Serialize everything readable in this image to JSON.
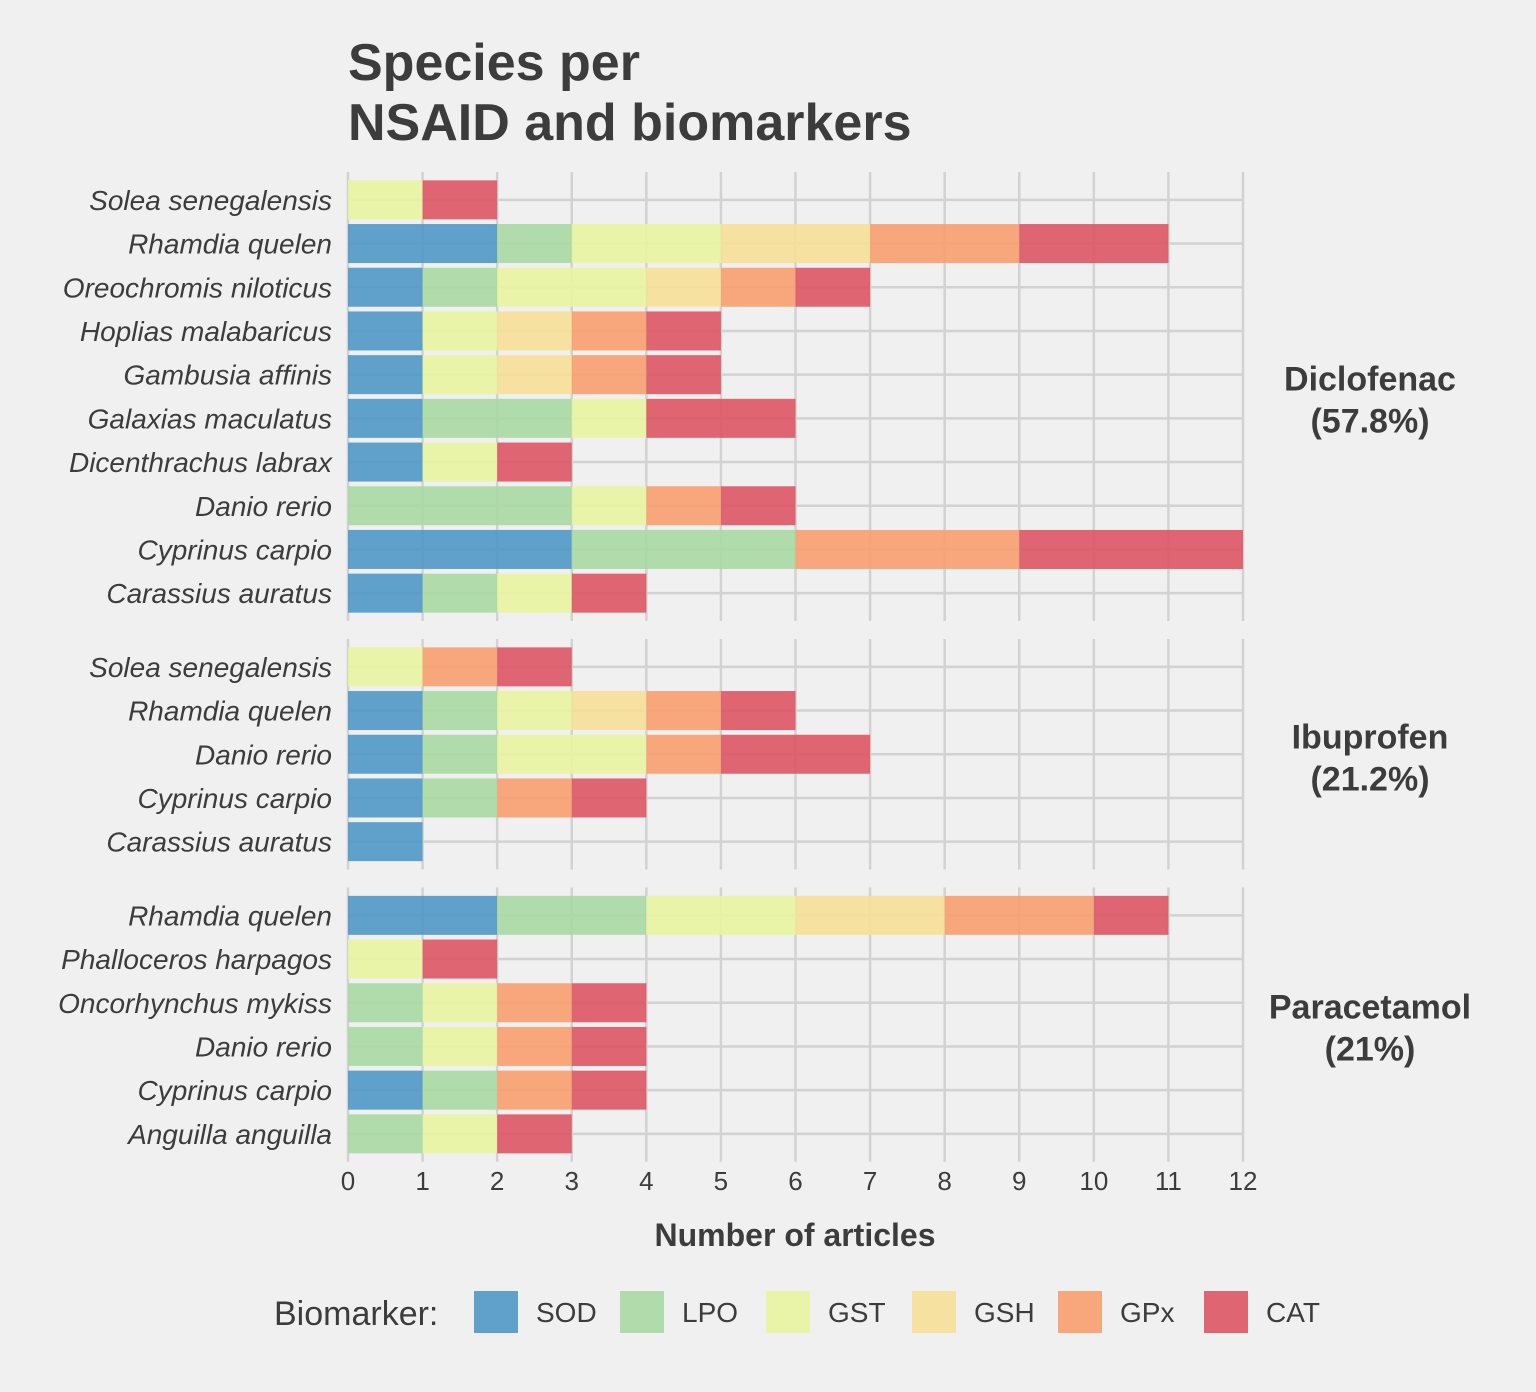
{
  "chart_data": {
    "type": "bar",
    "orientation": "horizontal",
    "stacked": true,
    "title": [
      "Species per",
      "NSAID and biomarkers"
    ],
    "xlabel": "Number of articles",
    "xlim": [
      0,
      12
    ],
    "xticks": [
      0,
      1,
      2,
      3,
      4,
      5,
      6,
      7,
      8,
      9,
      10,
      11,
      12
    ],
    "grid": true,
    "legend": {
      "title": "Biomarker:",
      "placement": "bottom",
      "items": [
        {
          "name": "SOD",
          "color": "#4f98c6"
        },
        {
          "name": "LPO",
          "color": "#a9d9a3"
        },
        {
          "name": "GST",
          "color": "#e8f4a0"
        },
        {
          "name": "GSH",
          "color": "#f7df98"
        },
        {
          "name": "GPx",
          "color": "#f89f70"
        },
        {
          "name": "CAT",
          "color": "#db5563"
        }
      ]
    },
    "facets": [
      {
        "name": "Diclofenac",
        "share": "(57.8%)",
        "rows": [
          {
            "species": "Solea senegalensis",
            "SOD": 0,
            "LPO": 0,
            "GST": 1,
            "GSH": 0,
            "GPx": 0,
            "CAT": 1
          },
          {
            "species": "Rhamdia quelen",
            "SOD": 2,
            "LPO": 1,
            "GST": 2,
            "GSH": 2,
            "GPx": 2,
            "CAT": 2
          },
          {
            "species": "Oreochromis niloticus",
            "SOD": 1,
            "LPO": 1,
            "GST": 2,
            "GSH": 1,
            "GPx": 1,
            "CAT": 1
          },
          {
            "species": "Hoplias malabaricus",
            "SOD": 1,
            "LPO": 0,
            "GST": 1,
            "GSH": 1,
            "GPx": 1,
            "CAT": 1
          },
          {
            "species": "Gambusia affinis",
            "SOD": 1,
            "LPO": 0,
            "GST": 1,
            "GSH": 1,
            "GPx": 1,
            "CAT": 1
          },
          {
            "species": "Galaxias maculatus",
            "SOD": 1,
            "LPO": 2,
            "GST": 1,
            "GSH": 0,
            "GPx": 0,
            "CAT": 2
          },
          {
            "species": "Dicenthrachus labrax",
            "SOD": 1,
            "LPO": 0,
            "GST": 1,
            "GSH": 0,
            "GPx": 0,
            "CAT": 1
          },
          {
            "species": "Danio rerio",
            "SOD": 0,
            "LPO": 3,
            "GST": 1,
            "GSH": 0,
            "GPx": 1,
            "CAT": 1
          },
          {
            "species": "Cyprinus carpio",
            "SOD": 3,
            "LPO": 3,
            "GST": 0,
            "GSH": 0,
            "GPx": 3,
            "CAT": 3
          },
          {
            "species": "Carassius auratus",
            "SOD": 1,
            "LPO": 1,
            "GST": 1,
            "GSH": 0,
            "GPx": 0,
            "CAT": 1
          }
        ]
      },
      {
        "name": "Ibuprofen",
        "share": "(21.2%)",
        "rows": [
          {
            "species": "Solea senegalensis",
            "SOD": 0,
            "LPO": 0,
            "GST": 1,
            "GSH": 0,
            "GPx": 1,
            "CAT": 1
          },
          {
            "species": "Rhamdia quelen",
            "SOD": 1,
            "LPO": 1,
            "GST": 1,
            "GSH": 1,
            "GPx": 1,
            "CAT": 1
          },
          {
            "species": "Danio rerio",
            "SOD": 1,
            "LPO": 1,
            "GST": 2,
            "GSH": 0,
            "GPx": 1,
            "CAT": 2
          },
          {
            "species": "Cyprinus carpio",
            "SOD": 1,
            "LPO": 1,
            "GST": 0,
            "GSH": 0,
            "GPx": 1,
            "CAT": 1
          },
          {
            "species": "Carassius auratus",
            "SOD": 1,
            "LPO": 0,
            "GST": 0,
            "GSH": 0,
            "GPx": 0,
            "CAT": 0
          }
        ]
      },
      {
        "name": "Paracetamol",
        "share": "(21%)",
        "rows": [
          {
            "species": "Rhamdia quelen",
            "SOD": 2,
            "LPO": 2,
            "GST": 2,
            "GSH": 2,
            "GPx": 2,
            "CAT": 1
          },
          {
            "species": "Phalloceros harpagos",
            "SOD": 0,
            "LPO": 0,
            "GST": 1,
            "GSH": 0,
            "GPx": 0,
            "CAT": 1
          },
          {
            "species": "Oncorhynchus mykiss",
            "SOD": 0,
            "LPO": 1,
            "GST": 1,
            "GSH": 0,
            "GPx": 1,
            "CAT": 1
          },
          {
            "species": "Danio rerio",
            "SOD": 0,
            "LPO": 1,
            "GST": 1,
            "GSH": 0,
            "GPx": 1,
            "CAT": 1
          },
          {
            "species": "Cyprinus carpio",
            "SOD": 1,
            "LPO": 1,
            "GST": 0,
            "GSH": 0,
            "GPx": 1,
            "CAT": 1
          },
          {
            "species": "Anguilla anguilla",
            "SOD": 0,
            "LPO": 1,
            "GST": 1,
            "GSH": 0,
            "GPx": 0,
            "CAT": 1
          }
        ]
      }
    ]
  }
}
